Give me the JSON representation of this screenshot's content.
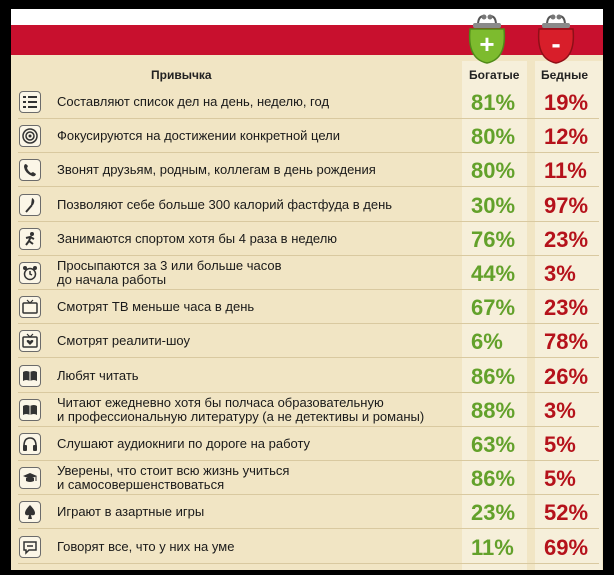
{
  "header": {
    "habit": "Привычка",
    "rich": "Богатые",
    "poor": "Бедные"
  },
  "purses": {
    "rich_sign": "+",
    "poor_sign": "-"
  },
  "colors": {
    "rich": "#63a12b",
    "poor": "#b5121b",
    "band": "#c8102e",
    "background": "#f1e5c4"
  },
  "rows": [
    {
      "icon": "list-icon",
      "text": "Составляют список дел на день, неделю, год",
      "rich": "81%",
      "poor": "19%"
    },
    {
      "icon": "target-icon",
      "text": "Фокусируются на достижении конкретной цели",
      "rich": "80%",
      "poor": "12%"
    },
    {
      "icon": "phone-icon",
      "text": "Звонят друзьям, родным, коллегам в день рождения",
      "rich": "80%",
      "poor": "11%"
    },
    {
      "icon": "fork-icon",
      "text": "Позволяют себе больше 300 калорий фастфуда в день",
      "rich": "30%",
      "poor": "97%"
    },
    {
      "icon": "runner-icon",
      "text": "Занимаются спортом хотя бы 4 раза в неделю",
      "rich": "76%",
      "poor": "23%"
    },
    {
      "icon": "alarm-clock-icon",
      "text": "Просыпаются за 3 или больше часов\nдо начала работы",
      "rich": "44%",
      "poor": "3%"
    },
    {
      "icon": "tv-icon",
      "text": "Смотрят ТВ меньше часа в день",
      "rich": "67%",
      "poor": "23%"
    },
    {
      "icon": "tv-heart-icon",
      "text": "Смотрят реалити-шоу",
      "rich": "6%",
      "poor": "78%"
    },
    {
      "icon": "book-icon",
      "text": "Любят читать",
      "rich": "86%",
      "poor": "26%"
    },
    {
      "icon": "book-icon",
      "text": "Читают ежедневно хотя бы полчаса образовательную\nи профессиональную литературу (а не детективы и романы)",
      "rich": "88%",
      "poor": "3%"
    },
    {
      "icon": "headphones-icon",
      "text": "Слушают аудиокниги по дороге на работу",
      "rich": "63%",
      "poor": "5%"
    },
    {
      "icon": "graduation-cap-icon",
      "text": "Уверены, что стоит всю жизнь учиться\nи самосовершенствоваться",
      "rich": "86%",
      "poor": "5%"
    },
    {
      "icon": "spade-icon",
      "text": "Играют в азартные игры",
      "rich": "23%",
      "poor": "52%"
    },
    {
      "icon": "speech-bubble-icon",
      "text": "Говорят все, что у них на уме",
      "rich": "11%",
      "poor": "69%"
    }
  ]
}
